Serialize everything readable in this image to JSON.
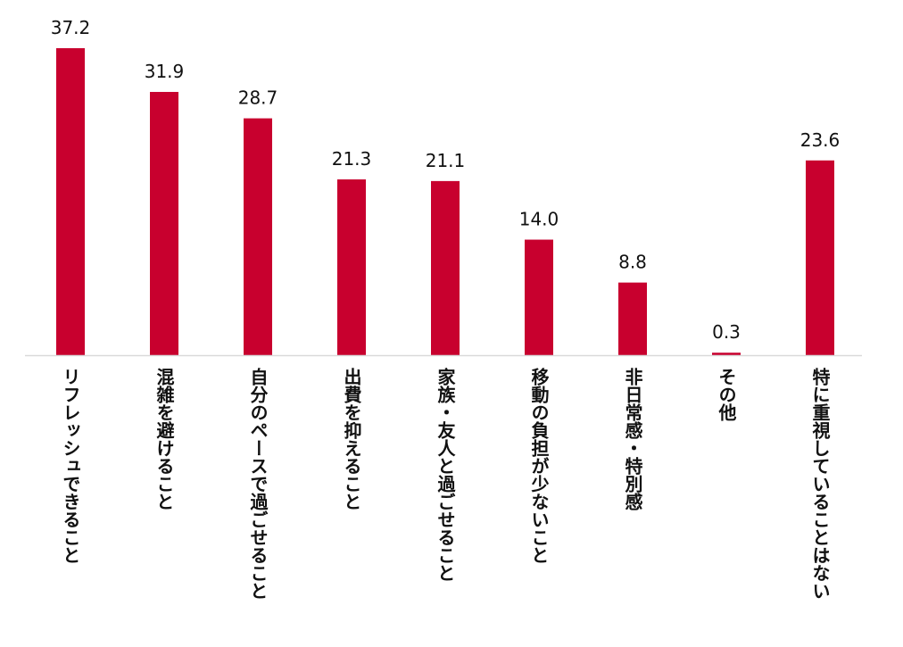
{
  "chart_data": {
    "type": "bar",
    "title": "",
    "xlabel": "",
    "ylabel": "",
    "categories": [
      "リフレッシュできること",
      "混雑を避けること",
      "自分のペースで過ごせること",
      "出費を抑えること",
      "家族・友人と過ごせること",
      "移動の負担が少ないこと",
      "非日常感・特別感",
      "その他",
      "特に重視していることはない"
    ],
    "values": [
      37.2,
      31.9,
      28.7,
      21.3,
      21.1,
      14.0,
      8.8,
      0.3,
      23.6
    ],
    "value_labels": [
      "37.2",
      "31.9",
      "28.7",
      "21.3",
      "21.1",
      "14.0",
      "8.8",
      "0.3",
      "23.6"
    ],
    "ylim": [
      0,
      37.2
    ],
    "bar_color": "#c8002e",
    "axis_color": "#d9d9d9",
    "grid": false,
    "legend": "none"
  }
}
